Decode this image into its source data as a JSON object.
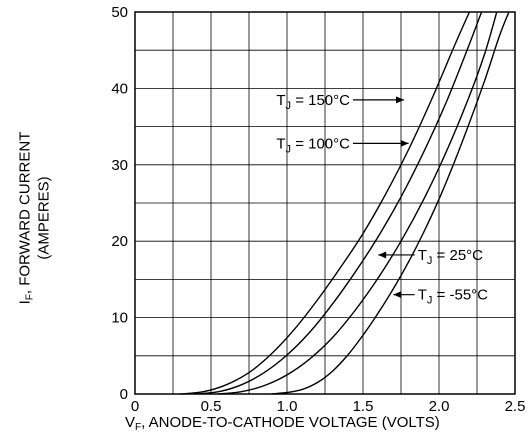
{
  "chart_data": {
    "type": "line",
    "xlabel": {
      "symbol": "V",
      "sub": "F",
      "text": ", ANODE-TO-CATHODE VOLTAGE (VOLTS)"
    },
    "ylabel": {
      "symbol": "I",
      "sub": "F",
      "line1": ", FORWARD CURRENT",
      "line2": "(AMPERES)"
    },
    "xlim": [
      0,
      2.5
    ],
    "ylim": [
      0,
      50
    ],
    "xticks": [
      "0",
      "0.5",
      "1.0",
      "1.5",
      "2.0",
      "2.5"
    ],
    "yticks": [
      "0",
      "10",
      "20",
      "30",
      "40",
      "50"
    ],
    "grid": true,
    "series": [
      {
        "name": "150°C",
        "label": "T_J = 150°C",
        "label_side": "left",
        "x": [
          0.3,
          0.45,
          0.6,
          0.75,
          0.9,
          1.05,
          1.2,
          1.35,
          1.5,
          1.65,
          1.8,
          1.95,
          2.1,
          2.2
        ],
        "y": [
          0,
          0.3,
          1.2,
          2.8,
          5.3,
          8.5,
          12.3,
          16.5,
          21,
          26.2,
          32,
          38.5,
          45.5,
          50
        ]
      },
      {
        "name": "100°C",
        "label": "T_J = 100°C",
        "label_side": "left",
        "x": [
          0.4,
          0.55,
          0.7,
          0.85,
          1.0,
          1.15,
          1.3,
          1.45,
          1.6,
          1.75,
          1.9,
          2.05,
          2.2,
          2.28
        ],
        "y": [
          0,
          0.3,
          1.2,
          2.8,
          5.1,
          8.1,
          11.8,
          16,
          20.6,
          25.8,
          31.7,
          38.3,
          45.8,
          50
        ]
      },
      {
        "name": "25°C",
        "label": "T_J = 25°C",
        "label_side": "right",
        "x": [
          0.55,
          0.7,
          0.85,
          1.0,
          1.15,
          1.3,
          1.45,
          1.6,
          1.75,
          1.9,
          2.05,
          2.2,
          2.3,
          2.38
        ],
        "y": [
          0,
          0.3,
          1.1,
          2.5,
          4.6,
          7.4,
          11,
          15.2,
          20,
          25.5,
          31.8,
          39,
          44.5,
          50
        ]
      },
      {
        "name": "-55°C",
        "label": "T_J = -55°C",
        "label_side": "right",
        "x": [
          0.9,
          1.0,
          1.1,
          1.2,
          1.3,
          1.4,
          1.5,
          1.6,
          1.7,
          1.8,
          1.9,
          2.0,
          2.1,
          2.2,
          2.3,
          2.4,
          2.46
        ],
        "y": [
          0,
          0.2,
          0.6,
          1.5,
          3,
          5.1,
          7.7,
          10.6,
          13.8,
          17.3,
          21.2,
          25.5,
          30.3,
          35.5,
          41,
          47,
          50
        ]
      }
    ],
    "annotations": [
      {
        "series": "150°C",
        "text_x": 0.93,
        "text_y": 38.5,
        "arrow_to": [
          1.77,
          38.5
        ]
      },
      {
        "series": "100°C",
        "text_x": 0.93,
        "text_y": 32.8,
        "arrow_to": [
          1.8,
          32.8
        ]
      },
      {
        "series": "25°C",
        "text_x": 1.86,
        "text_y": 18.2,
        "arrow_to": [
          1.6,
          18.2
        ]
      },
      {
        "series": "-55°C",
        "text_x": 1.86,
        "text_y": 13.0,
        "arrow_to": [
          1.7,
          13.0
        ]
      }
    ]
  }
}
